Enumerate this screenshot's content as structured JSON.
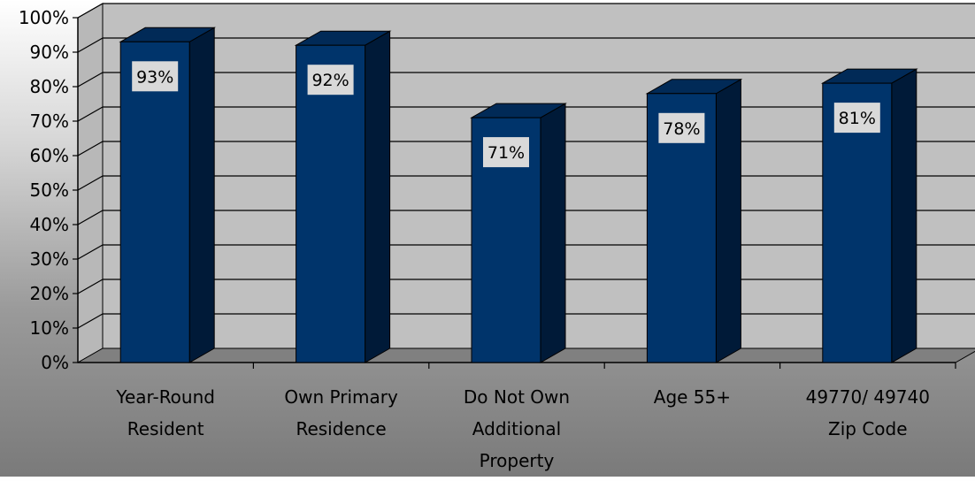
{
  "chart_data": {
    "type": "bar",
    "categories": [
      [
        "Year-Round",
        "Resident"
      ],
      [
        "Own Primary",
        "Residence"
      ],
      [
        "Do Not Own",
        "Additional",
        "Property"
      ],
      [
        "Age 55+"
      ],
      [
        "49770/ 49740",
        "Zip Code"
      ]
    ],
    "values": [
      93,
      92,
      71,
      78,
      81
    ],
    "data_labels": [
      "93%",
      "92%",
      "71%",
      "78%",
      "81%"
    ],
    "y_ticks": [
      "0%",
      "10%",
      "20%",
      "30%",
      "40%",
      "50%",
      "60%",
      "70%",
      "80%",
      "90%",
      "100%"
    ],
    "ylim": [
      0,
      100
    ],
    "grid": true,
    "legend": "none",
    "colors": {
      "bar_front": "#00346b",
      "bar_side": "#001a38",
      "bar_top": "#012a57",
      "wall": "#c0c0c0",
      "floor": "#808080",
      "label_box": "#d9d9d9"
    }
  }
}
